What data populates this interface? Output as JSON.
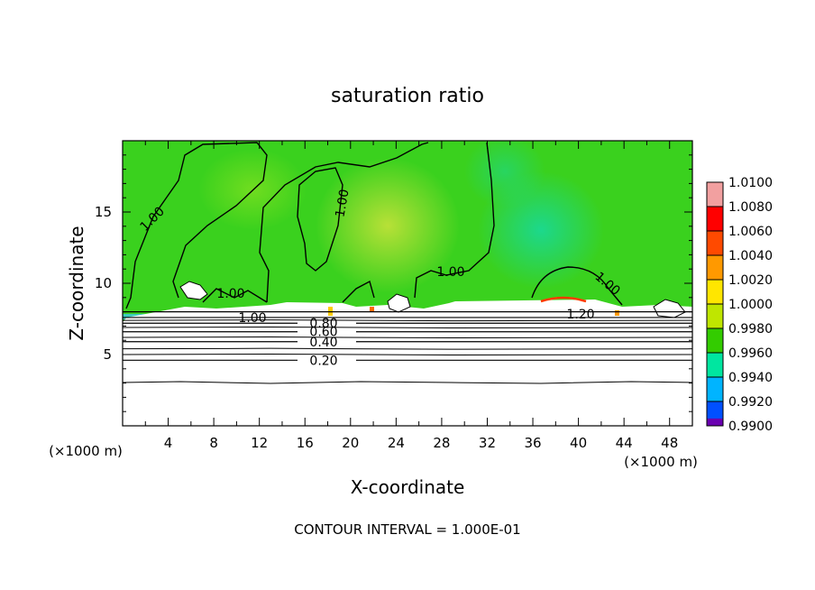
{
  "chart_data": {
    "type": "heatmap",
    "title": "saturation ratio",
    "xlabel": "X-coordinate",
    "ylabel": "Z-coordinate",
    "x_unit": "(×1000 m)",
    "z_unit": "(×1000 m)",
    "xlim": [
      0,
      50
    ],
    "ylim": [
      0,
      20
    ],
    "x_ticks": [
      "4",
      "8",
      "12",
      "16",
      "20",
      "24",
      "28",
      "32",
      "36",
      "40",
      "44",
      "48"
    ],
    "y_ticks": [
      "5",
      "10",
      "15"
    ],
    "footer": "CONTOUR INTERVAL = 1.000E-01",
    "colorbar": {
      "levels": [
        "1.0100",
        "1.0080",
        "1.0060",
        "1.0040",
        "1.0020",
        "1.0000",
        "0.9980",
        "0.9960",
        "0.9940",
        "0.9920",
        "0.9900"
      ],
      "colors": [
        "#f2a0a0",
        "#ff0000",
        "#ff4a00",
        "#ff9900",
        "#ffe600",
        "#bfe600",
        "#33cc00",
        "#00e6a0",
        "#00b4ff",
        "#0050ff",
        "#0000b4",
        "#6a00b0"
      ]
    },
    "contours": [
      {
        "label": "0.20",
        "z": 4.6
      },
      {
        "label": "0.40",
        "z": 5.9
      },
      {
        "label": "0.60",
        "z": 6.6
      },
      {
        "label": "0.80",
        "z": 7.2
      },
      {
        "label": "1.00",
        "z": 7.6
      },
      {
        "label": "1.20",
        "z": 8.0
      }
    ]
  }
}
